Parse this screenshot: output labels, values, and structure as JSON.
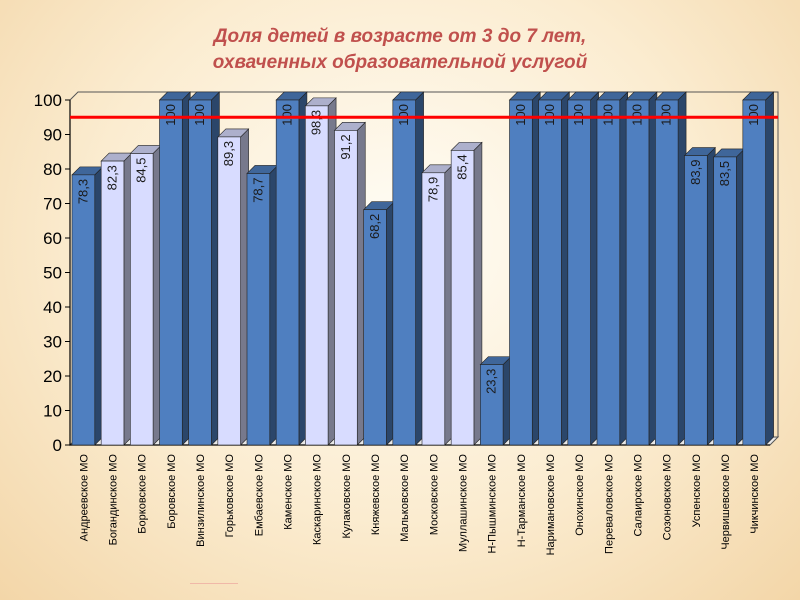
{
  "title_lines": [
    "Доля детей в возрасте от 3 до 7 лет,",
    "охваченных образовательной услугой"
  ],
  "chart_data": {
    "type": "bar",
    "title": "Доля детей в возрасте от 3 до 7 лет, охваченных образовательной услугой",
    "categories": [
      "Андреевское МО",
      "Богандинское МО",
      "Борковское МО",
      "Боровское МО",
      "Винзилинское МО",
      "Горьковское МО",
      "Ембаевское МО",
      "Каменское МО",
      "Каскаринское МО",
      "Кулаковское МО",
      "Княжевское МО",
      "Мальковское МО",
      "Московское МО",
      "Муллашинское МО",
      "Н-Пышминское МО",
      "Н-Тарманское МО",
      "Наримановское МО",
      "Онохинское МО",
      "Переваловское МО",
      "Салаирское МО",
      "Созоновское МО",
      "Успенское МО",
      "Червишевское МО",
      "Чикчинское МО"
    ],
    "values": [
      78.3,
      82.3,
      84.5,
      100,
      100,
      89.3,
      78.7,
      100,
      98.3,
      91.2,
      68.2,
      100,
      78.9,
      85.4,
      23.3,
      100,
      100,
      100,
      100,
      100,
      100,
      83.9,
      83.5,
      100
    ],
    "value_labels": [
      "78,3",
      "82,3",
      "84,5",
      "100",
      "100",
      "89,3",
      "78,7",
      "100",
      "98,3",
      "91,2",
      "68,2",
      "100",
      "78,9",
      "85,4",
      "23,3",
      "100",
      "100",
      "100",
      "100",
      "100",
      "100",
      "83,9",
      "83,5",
      "100"
    ],
    "bar_styles": [
      "dark",
      "light",
      "light",
      "dark",
      "dark",
      "light",
      "dark",
      "dark",
      "light",
      "light",
      "dark",
      "dark",
      "light",
      "light",
      "dark",
      "dark",
      "dark",
      "dark",
      "dark",
      "dark",
      "dark",
      "dark",
      "dark",
      "dark"
    ],
    "ylim": [
      0,
      100
    ],
    "yticks": [
      "0",
      "10",
      "20",
      "30",
      "40",
      "50",
      "60",
      "70",
      "80",
      "90",
      "100"
    ],
    "reference_line": 95,
    "grid": false,
    "colors": {
      "dark_bar": "#4f7fc0",
      "light_bar": "#d8dcff",
      "reference_line": "#ff0000",
      "title": "#c0504d"
    }
  }
}
